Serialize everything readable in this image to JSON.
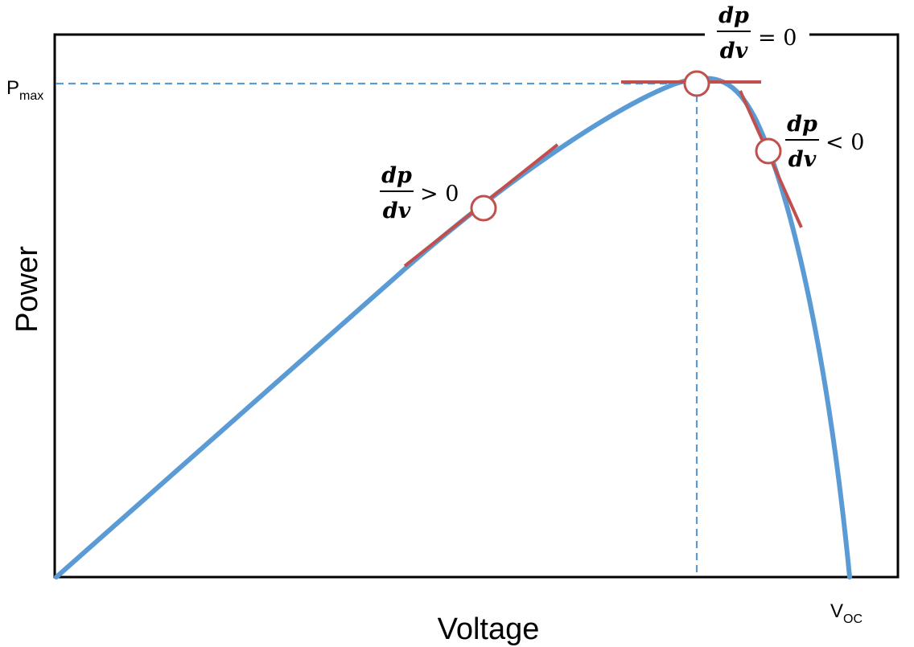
{
  "axes": {
    "x_label": "Voltage",
    "y_label": "Power"
  },
  "markers": {
    "pmax": {
      "main": "P",
      "sub": "max"
    },
    "voc": {
      "main": "V",
      "sub": "OC"
    }
  },
  "annotations": [
    {
      "numerator": "dp",
      "denominator": "dv",
      "relation": "> 0"
    },
    {
      "numerator": "dp",
      "denominator": "dv",
      "relation": "= 0"
    },
    {
      "numerator": "dp",
      "denominator": "dv",
      "relation": "< 0"
    }
  ],
  "colors": {
    "curve": "#5b9bd5",
    "tangent": "#c0504d",
    "reference_line": "#5b9bd5",
    "frame": "#000000",
    "point_fill": "#ffffff",
    "point_stroke": "#c0504d"
  }
}
